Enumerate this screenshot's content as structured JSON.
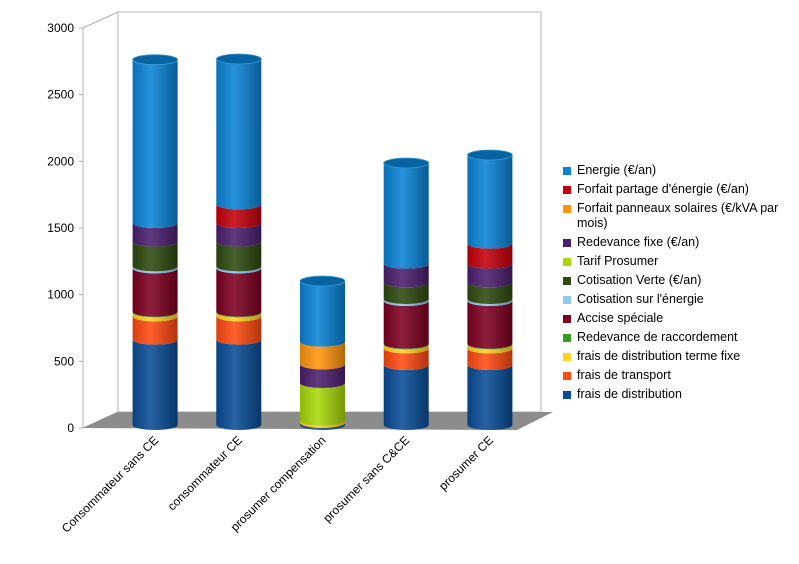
{
  "chart_data": {
    "type": "bar",
    "stacked": true,
    "three_d": true,
    "title": "",
    "xlabel": "",
    "ylabel": "",
    "ylim": [
      0,
      3000
    ],
    "yticks": [
      0,
      500,
      1000,
      1500,
      2000,
      2500,
      3000
    ],
    "grid": true,
    "legend_position": "right",
    "categories": [
      "Consommateur sans CE",
      "consommateur CE",
      "prosumer compensation",
      "prosumer sans C&CE",
      "prosumer CE"
    ],
    "series": [
      {
        "name": "frais de distribution",
        "color": "#0a4d96",
        "values": [
          640,
          640,
          15,
          450,
          450
        ]
      },
      {
        "name": "frais de transport",
        "color": "#ff4a12",
        "values": [
          175,
          175,
          0,
          125,
          125
        ]
      },
      {
        "name": "frais de distribution terme fixe",
        "color": "#ffd320",
        "values": [
          30,
          30,
          20,
          30,
          30
        ]
      },
      {
        "name": "Redevance de raccordement",
        "color": "#3a9a21",
        "values": [
          5,
          5,
          0,
          5,
          5
        ]
      },
      {
        "name": "Accise spéciale",
        "color": "#7e0021",
        "values": [
          325,
          325,
          0,
          320,
          320
        ]
      },
      {
        "name": "Cotisation sur l'énergie",
        "color": "#8ecaf0",
        "values": [
          15,
          15,
          0,
          15,
          15
        ]
      },
      {
        "name": "Cotisation Verte (€/an)",
        "color": "#2e4a0f",
        "values": [
          185,
          185,
          0,
          125,
          125
        ]
      },
      {
        "name": "Tarif Prosumer",
        "color": "#a8d80a",
        "values": [
          0,
          0,
          280,
          0,
          0
        ]
      },
      {
        "name": "Redevance fixe (€/an)",
        "color": "#4b1f6f",
        "values": [
          140,
          140,
          140,
          140,
          140
        ]
      },
      {
        "name": "Forfait panneaux solaires (€/kVA par mois)",
        "color": "#ff950e",
        "values": [
          0,
          0,
          170,
          0,
          0
        ]
      },
      {
        "name": "Forfait partage d'énergie (€/an)",
        "color": "#c5000b",
        "values": [
          0,
          140,
          0,
          0,
          150
        ]
      },
      {
        "name": "Energie (€/an)",
        "color": "#0a84d6",
        "values": [
          1225,
          1090,
          455,
          755,
          665
        ]
      }
    ]
  },
  "legend": {
    "items": [
      {
        "label": "Energie (€/an)",
        "color": "#0a84d6"
      },
      {
        "label": "Forfait partage d'énergie (€/an)",
        "color": "#c5000b"
      },
      {
        "label": "Forfait panneaux solaires (€/kVA par mois)",
        "color": "#ff950e"
      },
      {
        "label": "Redevance fixe (€/an)",
        "color": "#4b1f6f"
      },
      {
        "label": "Tarif Prosumer",
        "color": "#a8d80a"
      },
      {
        "label": "Cotisation Verte (€/an)",
        "color": "#2e4a0f"
      },
      {
        "label": "Cotisation sur l'énergie",
        "color": "#8ecaf0"
      },
      {
        "label": "Accise spéciale",
        "color": "#7e0021"
      },
      {
        "label": "Redevance de raccordement",
        "color": "#3a9a21"
      },
      {
        "label": "frais de distribution terme fixe",
        "color": "#ffd320"
      },
      {
        "label": "frais de transport",
        "color": "#ff4a12"
      },
      {
        "label": "frais de distribution",
        "color": "#0a4d96"
      }
    ]
  }
}
